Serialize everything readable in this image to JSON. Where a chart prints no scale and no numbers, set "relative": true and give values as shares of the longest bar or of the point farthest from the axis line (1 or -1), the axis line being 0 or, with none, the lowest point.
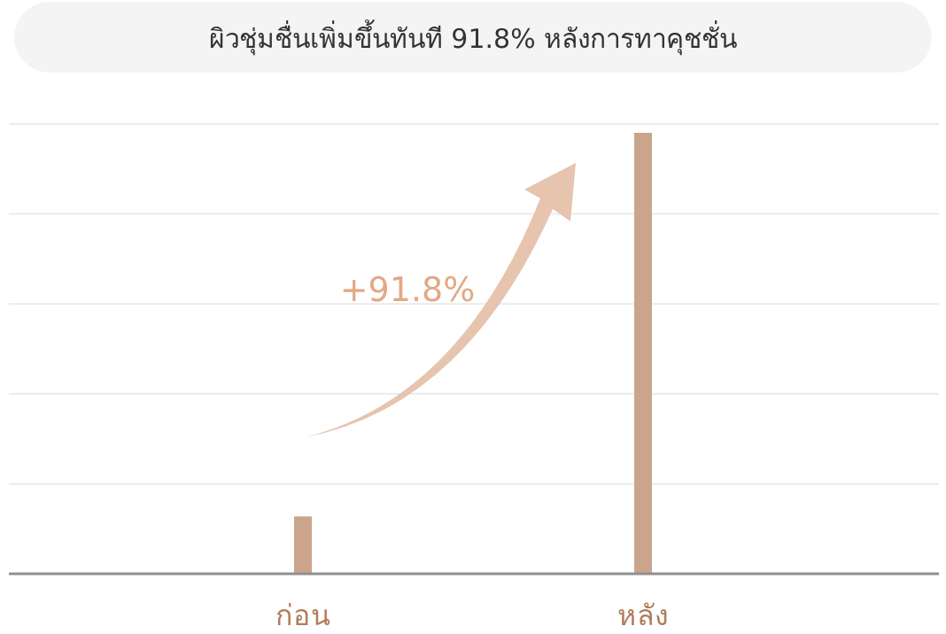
{
  "chart_data": {
    "type": "bar",
    "title": "ผิวชุ่มชื่นเพิ่มขึ้นทันที 91.8% หลังการทาคุชชั่น",
    "categories": [
      "ก่อน",
      "หลัง"
    ],
    "values": [
      0.13,
      1
    ],
    "color": "#cba48c",
    "relative": true,
    "grid": true,
    "annotations": [
      "+91.8%"
    ]
  }
}
